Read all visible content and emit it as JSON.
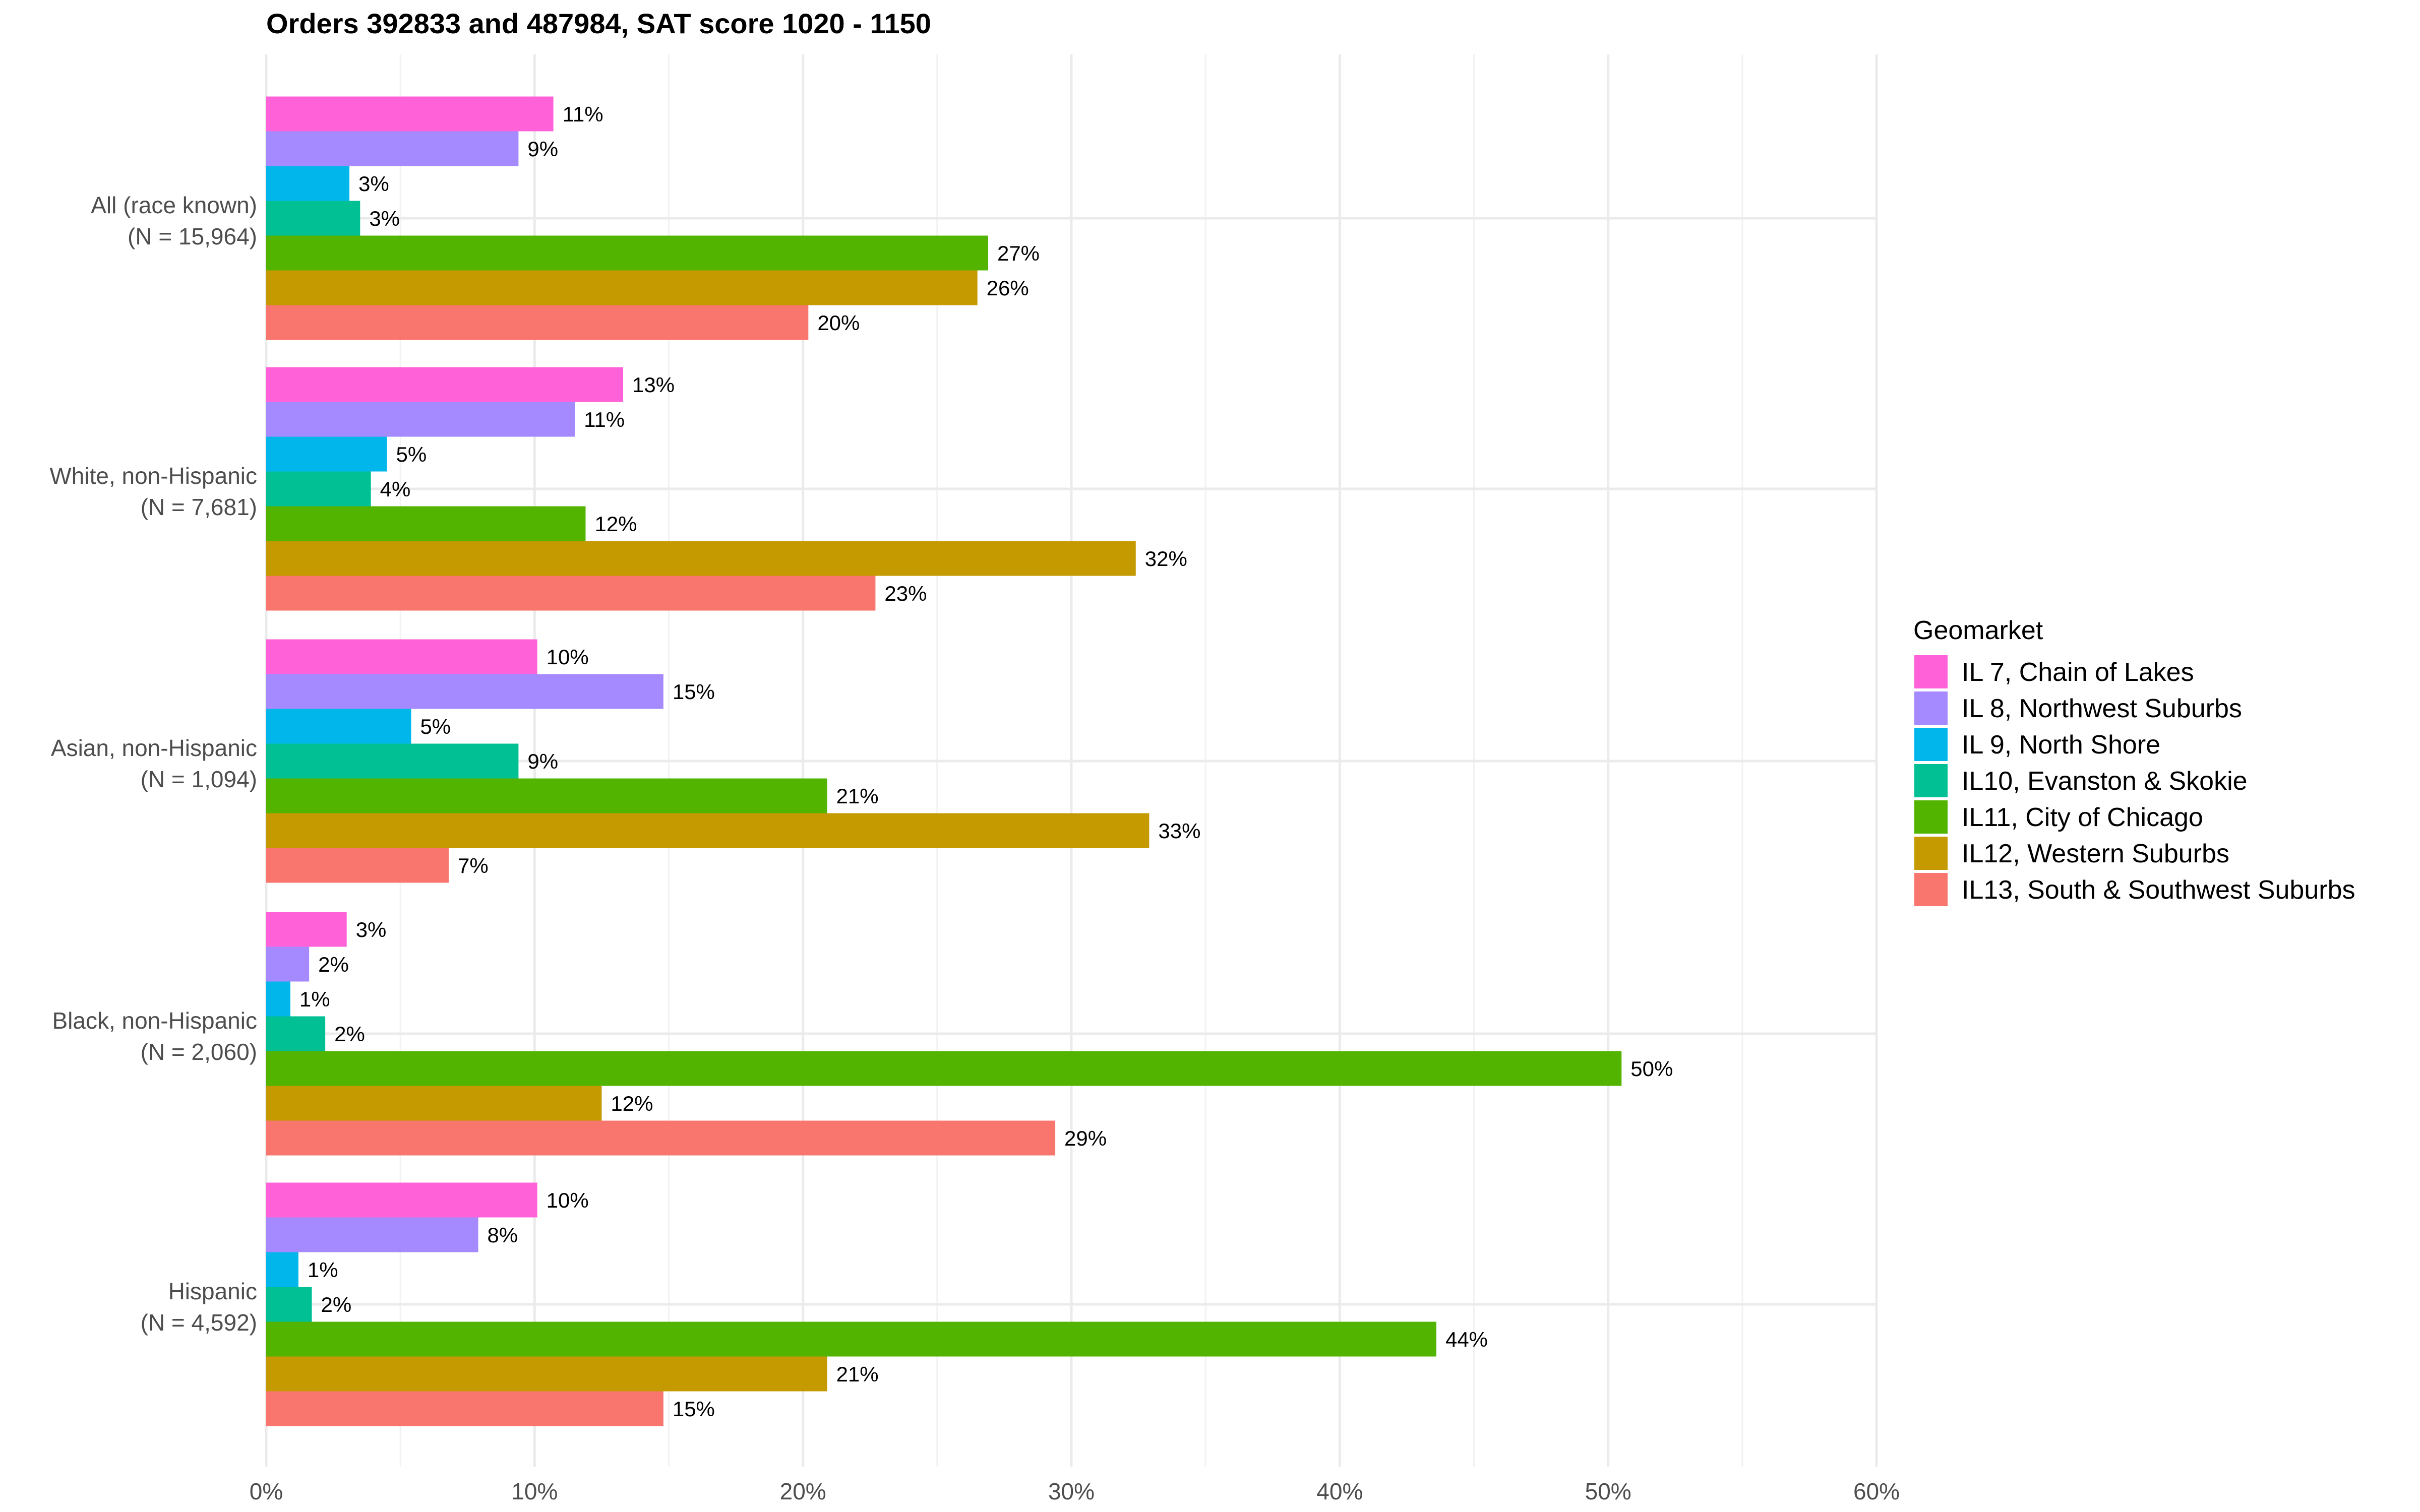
{
  "chart_data": {
    "type": "bar",
    "orientation": "horizontal",
    "title": "Orders 392833 and 487984, SAT score 1020 - 1150",
    "xlabel": "",
    "ylabel": "",
    "xlim": [
      0,
      60
    ],
    "x_ticks": [
      "0%",
      "10%",
      "20%",
      "30%",
      "40%",
      "50%",
      "60%"
    ],
    "x_tick_values": [
      0,
      10,
      20,
      30,
      40,
      50,
      60
    ],
    "grid": true,
    "categories": [
      {
        "line1": "All (race known)",
        "line2": "(N = 15,964)"
      },
      {
        "line1": "White, non-Hispanic",
        "line2": "(N = 7,681)"
      },
      {
        "line1": "Asian, non-Hispanic",
        "line2": "(N = 1,094)"
      },
      {
        "line1": "Black, non-Hispanic",
        "line2": "(N = 2,060)"
      },
      {
        "line1": "Hispanic",
        "line2": "(N = 4,592)"
      }
    ],
    "legend": {
      "title": "Geomarket",
      "position": "right"
    },
    "series": [
      {
        "name": "IL 7, Chain of Lakes",
        "color": "#FF61D8",
        "values": [
          10.7,
          13.3,
          10.1,
          3.0,
          10.1
        ],
        "labels": [
          "11%",
          "13%",
          "10%",
          "3%",
          "10%"
        ]
      },
      {
        "name": "IL 8, Northwest Suburbs",
        "color": "#A58AFF",
        "values": [
          9.4,
          11.5,
          14.8,
          1.6,
          7.9
        ],
        "labels": [
          "9%",
          "11%",
          "15%",
          "2%",
          "8%"
        ]
      },
      {
        "name": "IL 9, North Shore",
        "color": "#00B6EB",
        "values": [
          3.1,
          4.5,
          5.4,
          0.9,
          1.2
        ],
        "labels": [
          "3%",
          "5%",
          "5%",
          "1%",
          "1%"
        ]
      },
      {
        "name": "IL10, Evanston & Skokie",
        "color": "#00C094",
        "values": [
          3.5,
          3.9,
          9.4,
          2.2,
          1.7
        ],
        "labels": [
          "3%",
          "4%",
          "9%",
          "2%",
          "2%"
        ]
      },
      {
        "name": "IL11, City of Chicago",
        "color": "#53B400",
        "values": [
          26.9,
          11.9,
          20.9,
          50.5,
          43.6
        ],
        "labels": [
          "27%",
          "12%",
          "21%",
          "50%",
          "44%"
        ]
      },
      {
        "name": "IL12, Western Suburbs",
        "color": "#C49A00",
        "values": [
          26.5,
          32.4,
          32.9,
          12.5,
          20.9
        ],
        "labels": [
          "26%",
          "32%",
          "33%",
          "12%",
          "21%"
        ]
      },
      {
        "name": "IL13, South & Southwest Suburbs",
        "color": "#F8766D",
        "values": [
          20.2,
          22.7,
          6.8,
          29.4,
          14.8
        ],
        "labels": [
          "20%",
          "23%",
          "7%",
          "29%",
          "15%"
        ]
      }
    ]
  }
}
